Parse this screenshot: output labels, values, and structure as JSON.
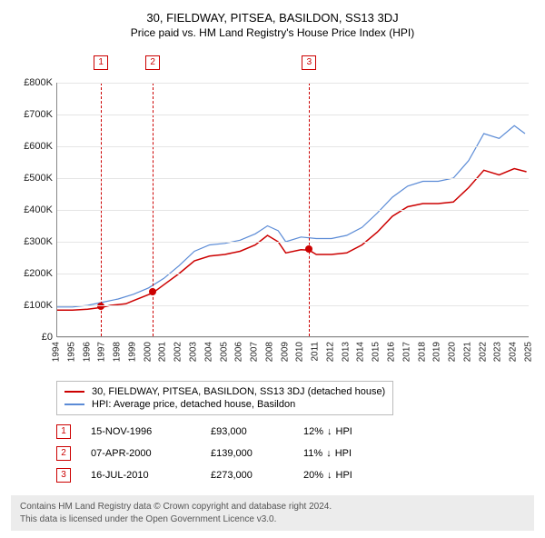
{
  "title": "30, FIELDWAY, PITSEA, BASILDON, SS13 3DJ",
  "subtitle": "Price paid vs. HM Land Registry's House Price Index (HPI)",
  "chart": {
    "type": "line",
    "background_color": "#ffffff",
    "grid_color": "#e5e5e5",
    "ymin": 0,
    "ymax": 800,
    "ytick_step": 100,
    "ytick_prefix": "£",
    "ytick_suffix": "K",
    "xmin": 1994,
    "xmax": 2025,
    "xticks": [
      1994,
      1995,
      1996,
      1997,
      1998,
      1999,
      2000,
      2001,
      2002,
      2003,
      2004,
      2005,
      2006,
      2007,
      2008,
      2009,
      2010,
      2011,
      2012,
      2013,
      2014,
      2015,
      2016,
      2017,
      2018,
      2019,
      2020,
      2021,
      2022,
      2023,
      2024,
      2025
    ],
    "series": [
      {
        "name": "30, FIELDWAY, PITSEA, BASILDON, SS13 3DJ (detached house)",
        "color": "#cc0000",
        "line_width": 1.5,
        "points": [
          [
            1994,
            85
          ],
          [
            1995,
            85
          ],
          [
            1996,
            88
          ],
          [
            1996.87,
            93
          ],
          [
            1997.5,
            100
          ],
          [
            1998.5,
            105
          ],
          [
            1999,
            115
          ],
          [
            2000.27,
            139
          ],
          [
            2001,
            165
          ],
          [
            2002,
            200
          ],
          [
            2003,
            240
          ],
          [
            2004,
            255
          ],
          [
            2005,
            260
          ],
          [
            2006,
            270
          ],
          [
            2007,
            290
          ],
          [
            2007.8,
            320
          ],
          [
            2008.5,
            300
          ],
          [
            2009,
            265
          ],
          [
            2010,
            275
          ],
          [
            2010.54,
            273
          ],
          [
            2011,
            260
          ],
          [
            2012,
            260
          ],
          [
            2013,
            265
          ],
          [
            2014,
            290
          ],
          [
            2015,
            330
          ],
          [
            2016,
            380
          ],
          [
            2017,
            410
          ],
          [
            2018,
            420
          ],
          [
            2019,
            420
          ],
          [
            2020,
            425
          ],
          [
            2021,
            470
          ],
          [
            2022,
            525
          ],
          [
            2023,
            510
          ],
          [
            2024,
            530
          ],
          [
            2024.8,
            520
          ]
        ]
      },
      {
        "name": "HPI: Average price, detached house, Basildon",
        "color": "#5b8bd6",
        "line_width": 1.2,
        "points": [
          [
            1994,
            95
          ],
          [
            1995,
            95
          ],
          [
            1996,
            100
          ],
          [
            1997,
            110
          ],
          [
            1998,
            120
          ],
          [
            1999,
            135
          ],
          [
            2000,
            155
          ],
          [
            2001,
            185
          ],
          [
            2002,
            225
          ],
          [
            2003,
            270
          ],
          [
            2004,
            290
          ],
          [
            2005,
            295
          ],
          [
            2006,
            305
          ],
          [
            2007,
            325
          ],
          [
            2007.8,
            350
          ],
          [
            2008.5,
            335
          ],
          [
            2009,
            300
          ],
          [
            2010,
            315
          ],
          [
            2011,
            310
          ],
          [
            2012,
            310
          ],
          [
            2013,
            320
          ],
          [
            2014,
            345
          ],
          [
            2015,
            390
          ],
          [
            2016,
            440
          ],
          [
            2017,
            475
          ],
          [
            2018,
            490
          ],
          [
            2019,
            490
          ],
          [
            2020,
            500
          ],
          [
            2021,
            555
          ],
          [
            2022,
            640
          ],
          [
            2023,
            625
          ],
          [
            2024,
            665
          ],
          [
            2024.7,
            640
          ]
        ]
      }
    ],
    "markers": [
      {
        "label": "1",
        "x": 1996.87,
        "y": 93,
        "color": "#cc0000"
      },
      {
        "label": "2",
        "x": 2000.27,
        "y": 139,
        "color": "#cc0000"
      },
      {
        "label": "3",
        "x": 2010.54,
        "y": 273,
        "color": "#cc0000"
      }
    ]
  },
  "legend": [
    {
      "color": "#cc0000",
      "text": "30, FIELDWAY, PITSEA, BASILDON, SS13 3DJ (detached house)"
    },
    {
      "color": "#5b8bd6",
      "text": "HPI: Average price, detached house, Basildon"
    }
  ],
  "events": [
    {
      "label": "1",
      "color": "#cc0000",
      "date": "15-NOV-1996",
      "price": "£93,000",
      "diff": "12%",
      "diff_label": "HPI"
    },
    {
      "label": "2",
      "color": "#cc0000",
      "date": "07-APR-2000",
      "price": "£139,000",
      "diff": "11%",
      "diff_label": "HPI"
    },
    {
      "label": "3",
      "color": "#cc0000",
      "date": "16-JUL-2010",
      "price": "£273,000",
      "diff": "20%",
      "diff_label": "HPI"
    }
  ],
  "footer_line1": "Contains HM Land Registry data © Crown copyright and database right 2024.",
  "footer_line2": "This data is licensed under the Open Government Licence v3.0."
}
